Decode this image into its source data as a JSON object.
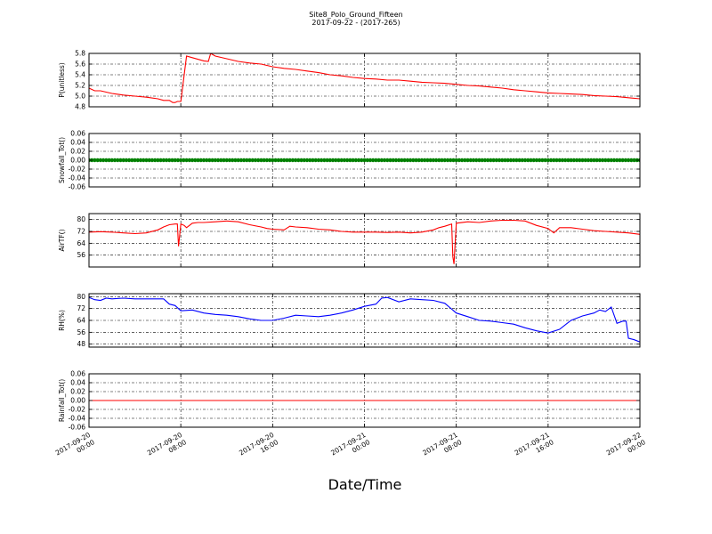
{
  "figure": {
    "title": "Site8_Polo_Ground_Fifteen",
    "subtitle": "2017-09-22 - (2017-265)",
    "xlabel": "Date/Time",
    "x_tick_labels": [
      [
        "2017-09-20",
        "00:00"
      ],
      [
        "2017-09-20",
        "08:00"
      ],
      [
        "2017-09-20",
        "16:00"
      ],
      [
        "2017-09-21",
        "00:00"
      ],
      [
        "2017-09-21",
        "08:00"
      ],
      [
        "2017-09-21",
        "16:00"
      ],
      [
        "2017-09-22",
        "00:00"
      ]
    ]
  },
  "chart_data": [
    {
      "type": "line",
      "ylabel": "P(unitless)",
      "color": "#ff0000",
      "ylim": [
        4.8,
        5.8
      ],
      "yticks": [
        4.8,
        5.0,
        5.2,
        5.4,
        5.6,
        5.8
      ],
      "tick_decimals": 1,
      "grid": true,
      "xlim_hours": [
        0,
        48
      ],
      "x": [
        0,
        0.5,
        1,
        2,
        3,
        4,
        5,
        6,
        6.5,
        7,
        7.3,
        7.5,
        7.7,
        8,
        8.5,
        9,
        10,
        10.4,
        10.6,
        11,
        12,
        13,
        14,
        15,
        16,
        17,
        18,
        19,
        20,
        21,
        22,
        23,
        24,
        25,
        26,
        27,
        28,
        29,
        30,
        31,
        32,
        33,
        34,
        35,
        36,
        37,
        38,
        39,
        40,
        41,
        42,
        43,
        44,
        45,
        46,
        47,
        48
      ],
      "y": [
        5.15,
        5.1,
        5.1,
        5.05,
        5.02,
        5.0,
        4.98,
        4.95,
        4.92,
        4.92,
        4.88,
        4.88,
        4.9,
        4.9,
        5.75,
        5.72,
        5.66,
        5.65,
        5.8,
        5.75,
        5.7,
        5.65,
        5.62,
        5.6,
        5.55,
        5.52,
        5.5,
        5.47,
        5.44,
        5.4,
        5.38,
        5.35,
        5.33,
        5.32,
        5.3,
        5.3,
        5.28,
        5.26,
        5.25,
        5.24,
        5.22,
        5.2,
        5.19,
        5.17,
        5.15,
        5.12,
        5.1,
        5.08,
        5.06,
        5.05,
        5.04,
        5.03,
        5.01,
        5.0,
        4.99,
        4.97,
        4.95
      ]
    },
    {
      "type": "scatter",
      "ylabel": "Snowfall_Tot()",
      "color": "#008000",
      "ylim": [
        -0.06,
        0.06
      ],
      "yticks": [
        -0.06,
        -0.04,
        -0.02,
        0.0,
        0.02,
        0.04,
        0.06
      ],
      "tick_decimals": 2,
      "grid": true,
      "xlim_hours": [
        0,
        48
      ],
      "constant_value": 0.0,
      "interval_hours": 0.25
    },
    {
      "type": "line",
      "ylabel": "AirTF()",
      "color": "#ff0000",
      "ylim": [
        48,
        84
      ],
      "yticks": [
        56,
        64,
        72,
        80
      ],
      "tick_decimals": 0,
      "grid": true,
      "xlim_hours": [
        0,
        48
      ],
      "x": [
        0,
        1,
        2,
        3,
        4,
        5,
        6,
        6.5,
        7,
        7.5,
        7.7,
        7.8,
        8,
        8.3,
        8.5,
        9,
        9.5,
        10,
        11,
        12,
        13,
        14,
        15,
        15.5,
        16,
        17,
        17.5,
        18,
        19,
        20,
        21,
        22,
        23,
        24,
        25,
        26,
        27,
        28,
        29,
        30,
        30.5,
        31,
        31.6,
        31.7,
        31.8,
        32,
        33,
        34,
        35,
        36,
        37,
        38,
        39,
        40,
        40.5,
        41,
        42,
        43,
        44,
        45,
        46,
        47,
        48
      ],
      "y": [
        71.5,
        71.8,
        71.5,
        71.0,
        70.5,
        71.0,
        73.0,
        75.0,
        76.5,
        77.0,
        77.0,
        62.0,
        77.0,
        76.0,
        74.5,
        77.5,
        78.0,
        78.0,
        78.5,
        79.0,
        78.5,
        76.5,
        75.0,
        74.0,
        73.5,
        73.0,
        75.5,
        75.0,
        74.5,
        73.5,
        73.0,
        72.0,
        71.5,
        71.5,
        71.5,
        71.3,
        71.5,
        71.0,
        71.5,
        73.0,
        74.5,
        75.5,
        77.0,
        55.0,
        50.0,
        77.5,
        78.5,
        78.0,
        79.0,
        79.5,
        79.5,
        79.0,
        76.0,
        74.0,
        71.0,
        74.5,
        74.5,
        73.5,
        72.5,
        72.0,
        71.5,
        71.0,
        70.0
      ]
    },
    {
      "type": "line",
      "ylabel": "RH(%)",
      "color": "#0000ff",
      "ylim": [
        46,
        82
      ],
      "yticks": [
        48,
        56,
        64,
        72,
        80
      ],
      "tick_decimals": 0,
      "grid": true,
      "xlim_hours": [
        0,
        48
      ],
      "x": [
        0,
        0.5,
        1,
        1.5,
        2,
        3,
        4,
        5,
        6,
        6.5,
        7,
        7.5,
        8,
        9,
        10,
        11,
        12,
        13,
        14,
        15,
        16,
        17,
        18,
        19,
        20,
        21,
        22,
        23,
        24,
        25,
        25.5,
        26,
        27,
        28,
        29,
        30,
        31,
        32,
        33,
        34,
        35,
        36,
        37,
        38,
        39,
        40,
        41,
        42,
        43,
        44,
        44.5,
        45,
        45.5,
        46,
        46.5,
        46.8,
        47,
        47.5,
        48
      ],
      "y": [
        79.5,
        78.0,
        77.5,
        79.0,
        78.5,
        79.0,
        78.5,
        78.5,
        78.5,
        78.5,
        75.0,
        74.0,
        70.5,
        71.0,
        69.0,
        68.0,
        67.5,
        66.5,
        65.0,
        64.0,
        64.0,
        65.5,
        67.5,
        67.0,
        66.5,
        67.5,
        69.0,
        71.0,
        73.5,
        75.0,
        79.0,
        79.5,
        76.5,
        78.5,
        78.0,
        77.5,
        75.5,
        69.0,
        66.5,
        64.0,
        63.5,
        62.5,
        61.5,
        59.0,
        57.0,
        55.5,
        58.0,
        64.0,
        67.0,
        69.0,
        71.0,
        70.0,
        73.0,
        62.0,
        63.5,
        63.5,
        52.0,
        51.0,
        49.5
      ]
    },
    {
      "type": "line",
      "ylabel": "Rainfall_Tot()",
      "color": "#ff0000",
      "ylim": [
        -0.06,
        0.06
      ],
      "yticks": [
        -0.06,
        -0.04,
        -0.02,
        0.0,
        0.02,
        0.04,
        0.06
      ],
      "tick_decimals": 2,
      "grid": true,
      "xlim_hours": [
        0,
        48
      ],
      "x": [
        0,
        48
      ],
      "y": [
        0.0,
        0.0
      ]
    }
  ]
}
